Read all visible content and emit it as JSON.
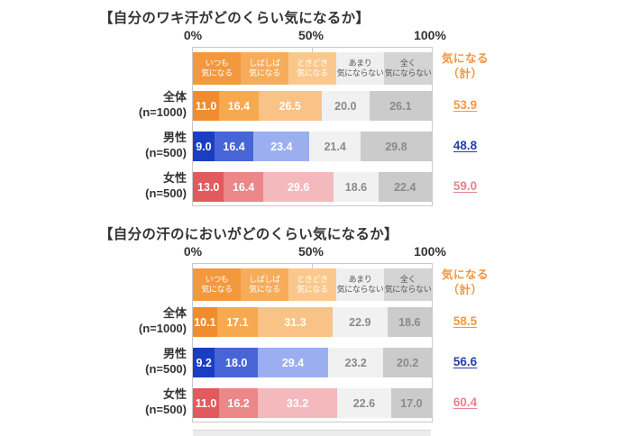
{
  "axis_ticks": [
    "0%",
    "50%",
    "100%"
  ],
  "totals_header": [
    "気になる",
    "（計）"
  ],
  "totals_header_color": "#F2953C",
  "legend": [
    {
      "lines": [
        "いつも",
        "気になる"
      ]
    },
    {
      "lines": [
        "しばしば",
        "気になる"
      ]
    },
    {
      "lines": [
        "ときどき",
        "気になる"
      ]
    },
    {
      "lines": [
        "あまり",
        "気にならない"
      ]
    },
    {
      "lines": [
        "全く",
        "気にならない"
      ]
    }
  ],
  "legend_colors": [
    "#F4983E",
    "#F7AC59",
    "#FAC88D",
    "#EFEFEF",
    "#D4D4D4"
  ],
  "palettes": {
    "orange": [
      "#F08C2E",
      "#F7A950",
      "#F9C286",
      "#F1F1F1",
      "#CBCBCB"
    ],
    "blue": [
      "#1B3DC4",
      "#4765D6",
      "#9BAFF0",
      "#F1F1F1",
      "#CBCBCB"
    ],
    "pink": [
      "#E25A5E",
      "#EB8689",
      "#F4B9BD",
      "#F1F1F1",
      "#CBCBCB"
    ]
  },
  "total_colors": {
    "orange": "#F29A3D",
    "blue": "#2440A8",
    "pink": "#E6858D"
  },
  "charts": [
    {
      "title": "【自分のワキ汗がどのくらい気になるか】",
      "rows": [
        {
          "label": "全体",
          "n": "(n=1000)",
          "palette": "orange",
          "values": [
            "11.0",
            "16.4",
            "26.5",
            "20.0",
            "26.1"
          ],
          "total": "53.9"
        },
        {
          "label": "男性",
          "n": "(n=500)",
          "palette": "blue",
          "values": [
            "9.0",
            "16.4",
            "23.4",
            "21.4",
            "29.8"
          ],
          "total": "48.8"
        },
        {
          "label": "女性",
          "n": "(n=500)",
          "palette": "pink",
          "values": [
            "13.0",
            "16.4",
            "29.6",
            "18.6",
            "22.4"
          ],
          "total": "59.0"
        }
      ]
    },
    {
      "title": "【自分の汗のにおいがどのくらい気になるか】",
      "rows": [
        {
          "label": "全体",
          "n": "(n=1000)",
          "palette": "orange",
          "values": [
            "10.1",
            "17.1",
            "31.3",
            "22.9",
            "18.6"
          ],
          "total": "58.5"
        },
        {
          "label": "男性",
          "n": "(n=500)",
          "palette": "blue",
          "values": [
            "9.2",
            "18.0",
            "29.4",
            "23.2",
            "20.2"
          ],
          "total": "56.6"
        },
        {
          "label": "女性",
          "n": "(n=500)",
          "palette": "pink",
          "values": [
            "11.0",
            "16.2",
            "33.2",
            "22.6",
            "17.0"
          ],
          "total": "60.4"
        }
      ]
    }
  ],
  "chart_data": [
    {
      "type": "bar",
      "subtype": "horizontal-stacked",
      "title": "【自分のワキ汗がどのくらい気になるか】",
      "categories": [
        "全体 (n=1000)",
        "男性 (n=500)",
        "女性 (n=500)"
      ],
      "series": [
        {
          "name": "いつも気になる",
          "values": [
            11.0,
            9.0,
            13.0
          ]
        },
        {
          "name": "しばしば気になる",
          "values": [
            16.4,
            16.4,
            16.4
          ]
        },
        {
          "name": "ときどき気になる",
          "values": [
            26.5,
            23.4,
            29.6
          ]
        },
        {
          "name": "あまり気にならない",
          "values": [
            20.0,
            21.4,
            18.6
          ]
        },
        {
          "name": "全く気にならない",
          "values": [
            26.1,
            29.8,
            22.4
          ]
        }
      ],
      "totals_concerned": {
        "label": "気になる（計）",
        "values": [
          53.9,
          48.8,
          59.0
        ]
      },
      "xlim": [
        0,
        100
      ],
      "x_ticks": [
        "0%",
        "50%",
        "100%"
      ],
      "unit": "%",
      "legend_position": "top",
      "grid": false
    },
    {
      "type": "bar",
      "subtype": "horizontal-stacked",
      "title": "【自分の汗のにおいがどのくらい気になるか】",
      "categories": [
        "全体 (n=1000)",
        "男性 (n=500)",
        "女性 (n=500)"
      ],
      "series": [
        {
          "name": "いつも気になる",
          "values": [
            10.1,
            9.2,
            11.0
          ]
        },
        {
          "name": "しばしば気になる",
          "values": [
            17.1,
            18.0,
            16.2
          ]
        },
        {
          "name": "ときどき気になる",
          "values": [
            31.3,
            29.4,
            33.2
          ]
        },
        {
          "name": "あまり気にならない",
          "values": [
            22.9,
            23.2,
            22.6
          ]
        },
        {
          "name": "全く気にならない",
          "values": [
            18.6,
            20.2,
            17.0
          ]
        }
      ],
      "totals_concerned": {
        "label": "気になる（計）",
        "values": [
          58.5,
          56.6,
          60.4
        ]
      },
      "xlim": [
        0,
        100
      ],
      "x_ticks": [
        "0%",
        "50%",
        "100%"
      ],
      "unit": "%",
      "legend_position": "top",
      "grid": false
    }
  ]
}
